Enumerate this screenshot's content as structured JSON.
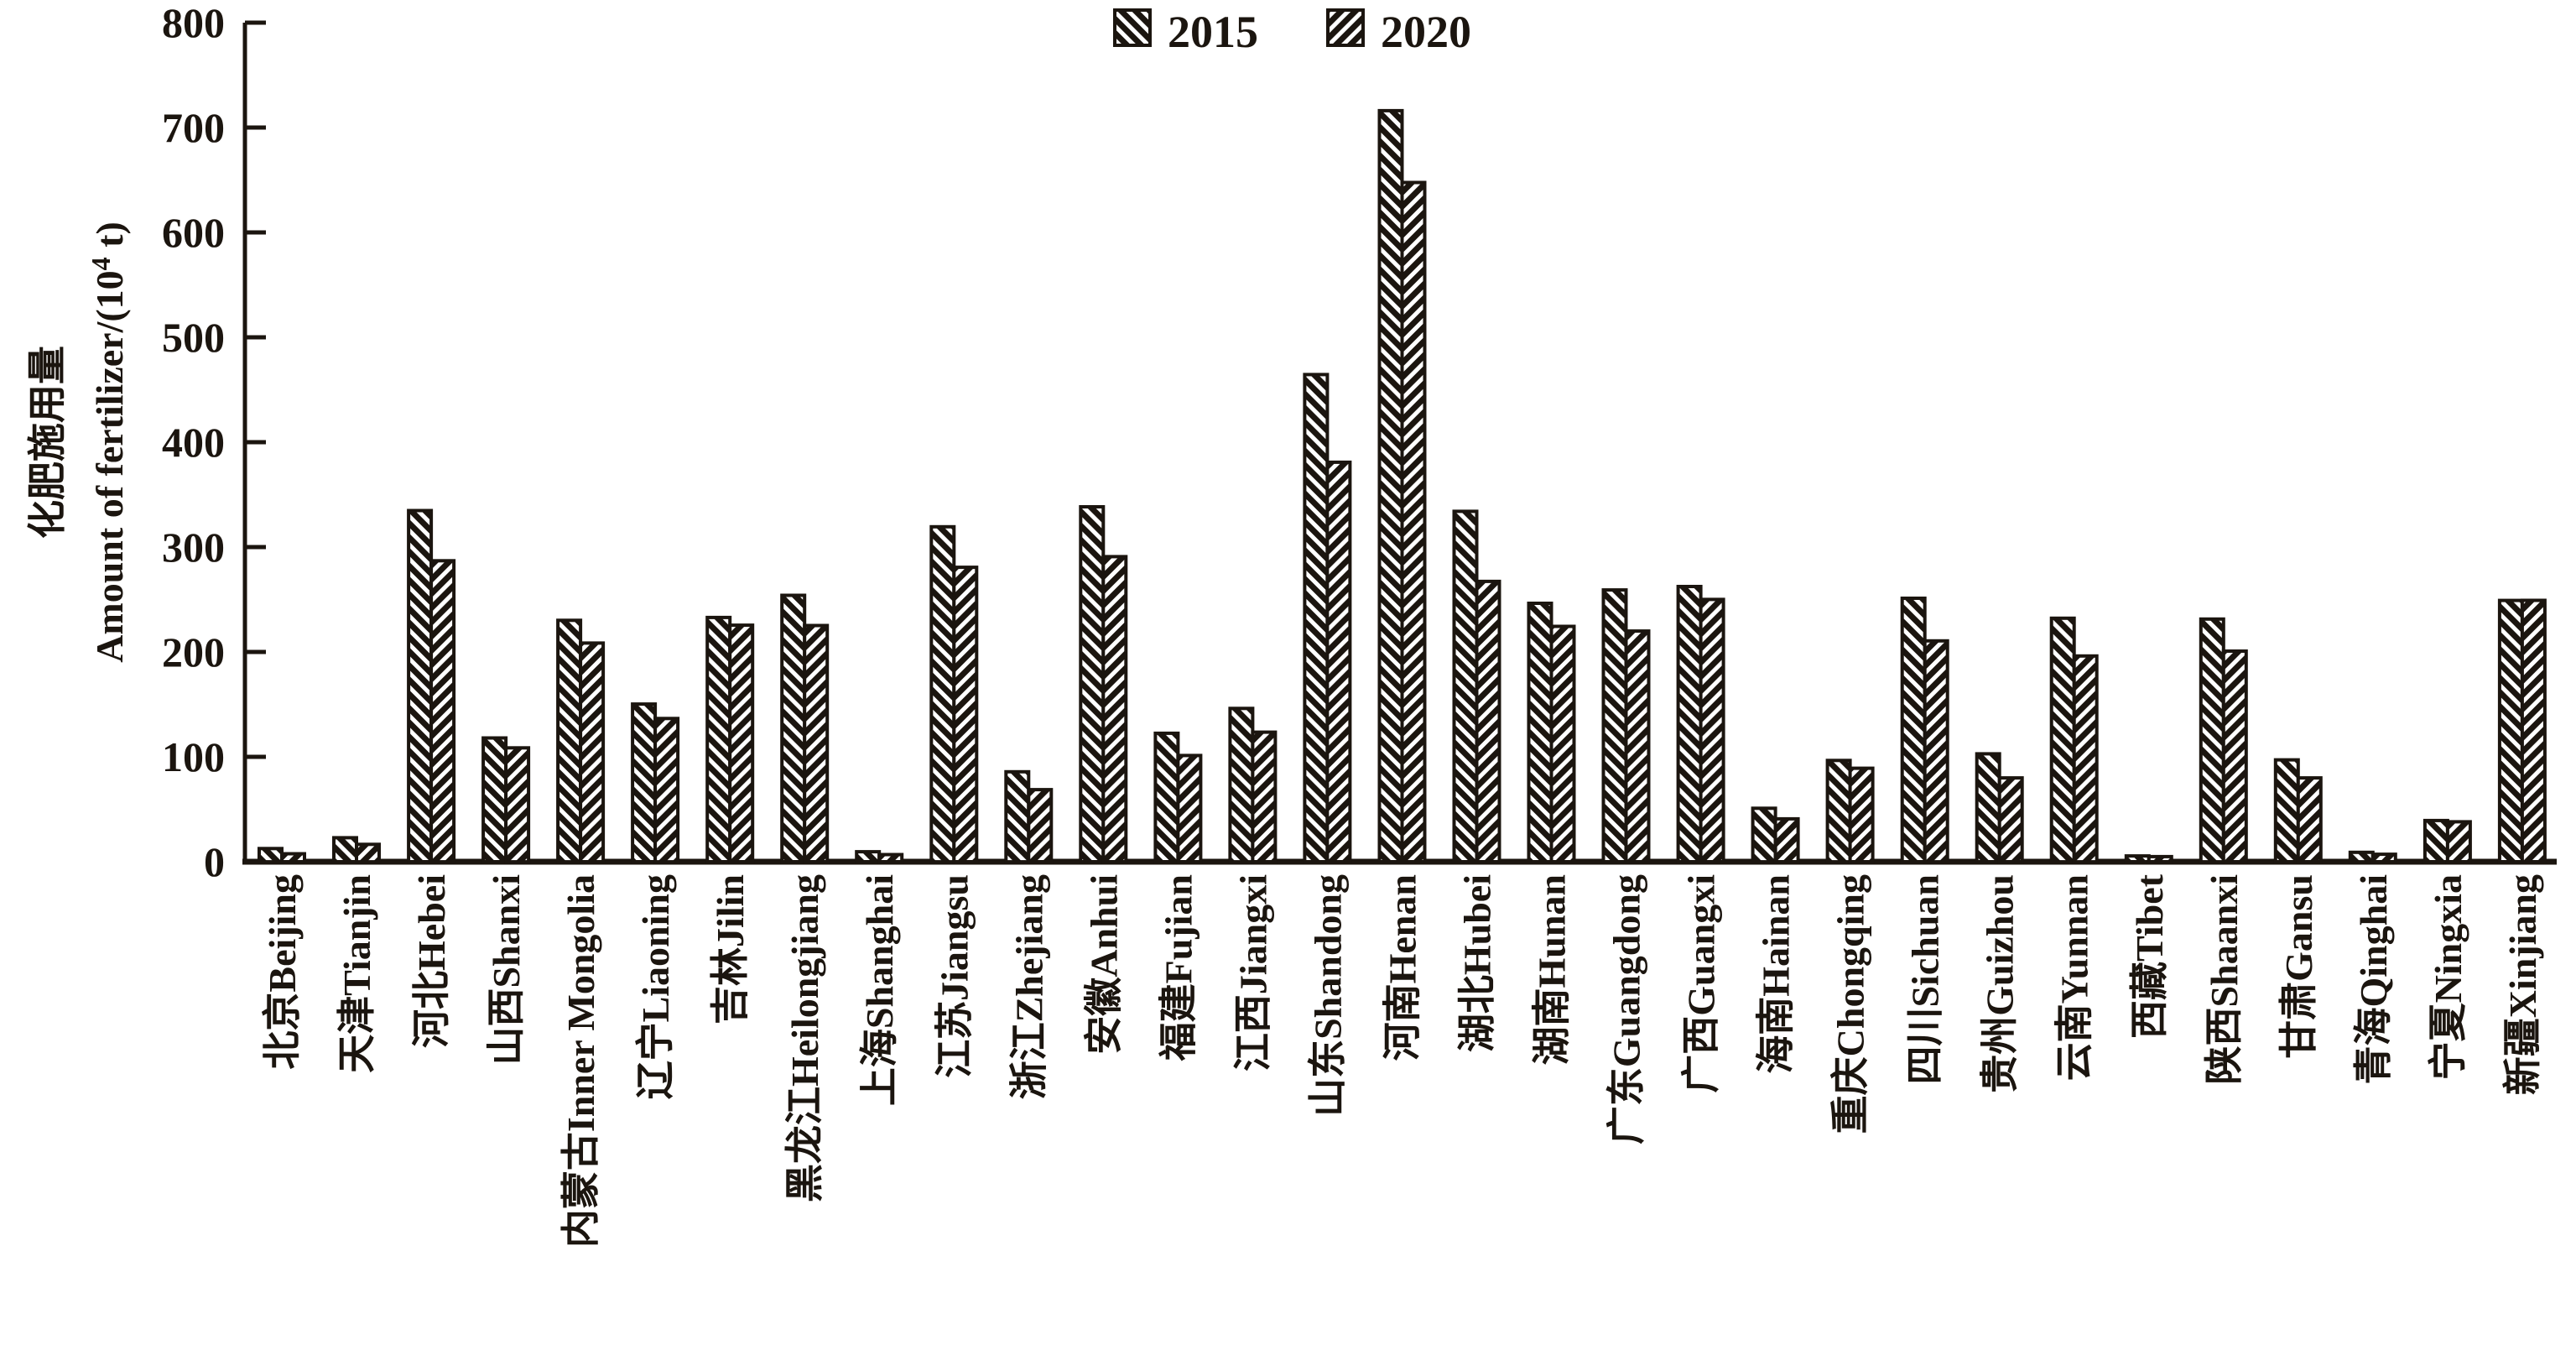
{
  "chart_data": {
    "type": "bar",
    "title": "",
    "ylabel_zh": "化肥施用量",
    "ylabel_en": "Amount of fertilizer/(10⁴ t)",
    "xlabel": "",
    "ylim": [
      0,
      800
    ],
    "yticks": [
      0,
      100,
      200,
      300,
      400,
      500,
      600,
      700,
      800
    ],
    "grid": false,
    "legend_position": "top-center",
    "categories": [
      {
        "zh": "北京",
        "en": "Beijing"
      },
      {
        "zh": "天津",
        "en": "Tianjin"
      },
      {
        "zh": "河北",
        "en": "Hebei"
      },
      {
        "zh": "山西",
        "en": "Shanxi"
      },
      {
        "zh": "内蒙古",
        "en": "Inner Mongolia"
      },
      {
        "zh": "辽宁",
        "en": "Liaoning"
      },
      {
        "zh": "吉林",
        "en": "Jilin"
      },
      {
        "zh": "黑龙江",
        "en": "Heilongjiang"
      },
      {
        "zh": "上海",
        "en": "Shanghai"
      },
      {
        "zh": "江苏",
        "en": "Jiangsu"
      },
      {
        "zh": "浙江",
        "en": "Zhejiang"
      },
      {
        "zh": "安徽",
        "en": "Anhui"
      },
      {
        "zh": "福建",
        "en": "Fujian"
      },
      {
        "zh": "江西",
        "en": "Jiangxi"
      },
      {
        "zh": "山东",
        "en": "Shandong"
      },
      {
        "zh": "河南",
        "en": "Henan"
      },
      {
        "zh": "湖北",
        "en": "Hubei"
      },
      {
        "zh": "湖南",
        "en": "Hunan"
      },
      {
        "zh": "广东",
        "en": "Guangdong"
      },
      {
        "zh": "广西",
        "en": "Guangxi"
      },
      {
        "zh": "海南",
        "en": "Hainan"
      },
      {
        "zh": "重庆",
        "en": "Chongqing"
      },
      {
        "zh": "四川",
        "en": "Sichuan"
      },
      {
        "zh": "贵州",
        "en": "Guizhou"
      },
      {
        "zh": "云南",
        "en": "Yunnan"
      },
      {
        "zh": "西藏",
        "en": "Tibet"
      },
      {
        "zh": "陕西",
        "en": "Shaanxi"
      },
      {
        "zh": "甘肃",
        "en": "Gansu"
      },
      {
        "zh": "青海",
        "en": "Qinghai"
      },
      {
        "zh": "宁夏",
        "en": "Ningxia"
      },
      {
        "zh": "新疆",
        "en": "Xinjiang"
      }
    ],
    "series": [
      {
        "name": "2015",
        "hatch": "backslash",
        "values": [
          12.6,
          22.9,
          334.8,
          118.0,
          230.2,
          150.3,
          232.9,
          254.0,
          9.5,
          319.4,
          85.8,
          338.4,
          122.5,
          146.2,
          464.5,
          716.1,
          334.1,
          246.4,
          259.1,
          262.4,
          51.0,
          96.6,
          251.2,
          102.9,
          232.2,
          5.5,
          231.4,
          97.1,
          9.0,
          39.3,
          249.1
        ]
      },
      {
        "name": "2020",
        "hatch": "slash",
        "values": [
          7.6,
          16.6,
          287.0,
          108.6,
          208.5,
          136.6,
          225.5,
          225.2,
          6.8,
          280.7,
          68.7,
          290.9,
          101.3,
          123.5,
          380.9,
          647.6,
          267.3,
          224.4,
          219.9,
          250.1,
          40.9,
          89.1,
          210.6,
          79.9,
          196.2,
          4.9,
          200.8,
          79.9,
          7.1,
          38.1,
          249.2
        ]
      }
    ],
    "colors": {
      "ink": "#1b150f",
      "background": "#ffffff",
      "hatch_stripe": "#ffffff"
    }
  }
}
